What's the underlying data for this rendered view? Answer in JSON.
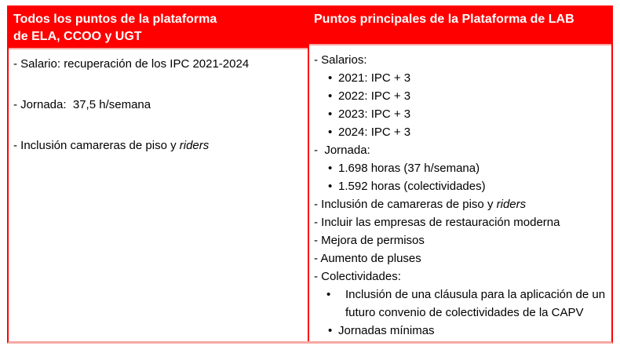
{
  "colors": {
    "header-bg": "#fe0000",
    "border-red": "#fe0000",
    "border-salmon": "#f6a9a4",
    "text": "#000000",
    "header-text": "#ffffff",
    "page-bg": "#ffffff"
  },
  "table": {
    "left": {
      "header": "Todos los puntos de la plataforma\nde ELA, CCOO y UGT",
      "items": [
        {
          "style": "dash",
          "segments": [
            {
              "text": "- Salario: recuperación de los IPC 2021-2024"
            }
          ]
        },
        {
          "style": "dash",
          "segments": [
            {
              "text": "- Jornada:  37,5 h/semana"
            }
          ]
        },
        {
          "style": "dash",
          "segments": [
            {
              "text": "- Inclusión camareras de piso y "
            },
            {
              "text": "riders",
              "italic": true
            }
          ]
        }
      ]
    },
    "right": {
      "header": "Puntos principales de la Plataforma de LAB",
      "items": [
        {
          "style": "dash",
          "segments": [
            {
              "text": "- Salarios:"
            }
          ]
        },
        {
          "style": "dot",
          "segments": [
            {
              "text": "2021: IPC + 3"
            }
          ]
        },
        {
          "style": "dot",
          "segments": [
            {
              "text": "2022: IPC + 3"
            }
          ]
        },
        {
          "style": "dot",
          "segments": [
            {
              "text": "2023: IPC + 3"
            }
          ]
        },
        {
          "style": "dot",
          "segments": [
            {
              "text": "2024: IPC + 3"
            }
          ]
        },
        {
          "style": "dash",
          "segments": [
            {
              "text": "-  Jornada:"
            }
          ]
        },
        {
          "style": "dot",
          "segments": [
            {
              "text": "1.698 horas (37 h/semana)"
            }
          ]
        },
        {
          "style": "dot",
          "segments": [
            {
              "text": "1.592 horas (colectividades)"
            }
          ]
        },
        {
          "style": "dash",
          "segments": [
            {
              "text": "- Inclusión de camareras de piso y "
            },
            {
              "text": "riders",
              "italic": true
            }
          ]
        },
        {
          "style": "dash",
          "segments": [
            {
              "text": "- Incluir las empresas de restauración moderna"
            }
          ]
        },
        {
          "style": "dash",
          "segments": [
            {
              "text": "- Mejora de permisos"
            }
          ]
        },
        {
          "style": "dash",
          "segments": [
            {
              "text": "- Aumento de pluses"
            }
          ]
        },
        {
          "style": "dash",
          "segments": [
            {
              "text": "- Colectividades:"
            }
          ]
        },
        {
          "style": "dot",
          "wide": true,
          "segments": [
            {
              "text": "Inclusión de una cláusula para la aplicación de un\nfuturo convenio de colectividades de la CAPV"
            }
          ]
        },
        {
          "style": "dot",
          "segments": [
            {
              "text": "Jornadas mínimas"
            }
          ]
        }
      ]
    }
  }
}
